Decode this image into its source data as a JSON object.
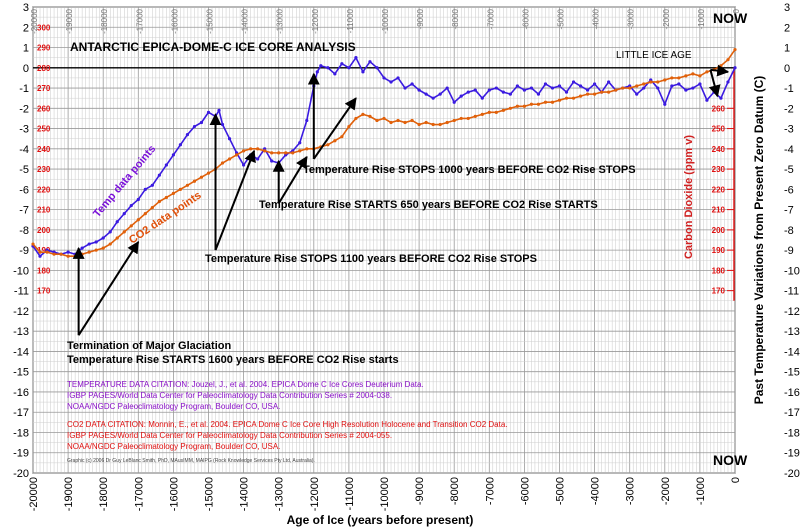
{
  "chart_data": {
    "type": "line",
    "title": "ANTARCTIC  EPICA-DOME-C  ICE  CORE  ANALYSIS",
    "xlabel": "Age of Ice (years before present)",
    "ylabel_right": "Past  Temperature  Variations  from  Present  Zero  Datum (C)",
    "ylabel_co2": "Carbon Dioxide (ppm v)",
    "xlim": [
      -20000,
      0
    ],
    "ylim": [
      -20,
      3
    ],
    "co2_axis_range": [
      170,
      300
    ],
    "x_ticks": [
      "-20000",
      "-19000",
      "-18000",
      "-17000",
      "-16000",
      "-15000",
      "-14000",
      "-13000",
      "-12000",
      "-11000",
      "-10000",
      "-9000",
      "-8000",
      "-7000",
      "-6000",
      "-5000",
      "-4000",
      "-3000",
      "-2000",
      "-1000",
      "0"
    ],
    "y_ticks": [
      "3",
      "2",
      "1",
      "0",
      "-1",
      "-2",
      "-3",
      "-4",
      "-5",
      "-6",
      "-7",
      "-8",
      "-9",
      "-10",
      "-11",
      "-12",
      "-13",
      "-14",
      "-15",
      "-16",
      "-17",
      "-18",
      "-19",
      "-20"
    ],
    "co2_ticks_left": [
      "300",
      "290",
      "280",
      "270",
      "260",
      "250",
      "240",
      "230",
      "220",
      "210",
      "200",
      "190",
      "180",
      "170"
    ],
    "co2_ticks_right": [
      "260",
      "250",
      "240",
      "230",
      "220",
      "210",
      "200",
      "190",
      "180",
      "170"
    ],
    "grid": true,
    "series": [
      {
        "name": "Temp data points",
        "color": "#3a1ae0",
        "x": [
          -20000,
          -19800,
          -19600,
          -19400,
          -19200,
          -19000,
          -18800,
          -18600,
          -18400,
          -18200,
          -18000,
          -17800,
          -17600,
          -17400,
          -17200,
          -17000,
          -16800,
          -16600,
          -16400,
          -16200,
          -16000,
          -15800,
          -15600,
          -15400,
          -15200,
          -15000,
          -14800,
          -14700,
          -14600,
          -14400,
          -14200,
          -14000,
          -13800,
          -13600,
          -13400,
          -13200,
          -13000,
          -12800,
          -12600,
          -12400,
          -12200,
          -12000,
          -11900,
          -11800,
          -11600,
          -11400,
          -11200,
          -11000,
          -10800,
          -10600,
          -10400,
          -10200,
          -10000,
          -9800,
          -9600,
          -9400,
          -9200,
          -9000,
          -8800,
          -8600,
          -8400,
          -8200,
          -8000,
          -7800,
          -7600,
          -7400,
          -7200,
          -7000,
          -6800,
          -6600,
          -6400,
          -6200,
          -6000,
          -5800,
          -5600,
          -5400,
          -5200,
          -5000,
          -4800,
          -4600,
          -4400,
          -4200,
          -4000,
          -3800,
          -3600,
          -3400,
          -3200,
          -3000,
          -2800,
          -2600,
          -2400,
          -2200,
          -2000,
          -1800,
          -1600,
          -1400,
          -1200,
          -1000,
          -800,
          -600,
          -400,
          -200,
          0
        ],
        "y": [
          -8.8,
          -9.3,
          -9.0,
          -9.1,
          -9.2,
          -9.1,
          -9.2,
          -8.9,
          -8.7,
          -8.6,
          -8.4,
          -8.1,
          -7.6,
          -7.2,
          -6.8,
          -6.5,
          -6.0,
          -5.8,
          -5.3,
          -4.8,
          -4.3,
          -3.8,
          -3.3,
          -2.9,
          -2.7,
          -2.2,
          -2.4,
          -2.1,
          -2.8,
          -3.5,
          -4.2,
          -4.8,
          -4.3,
          -4.5,
          -4.0,
          -4.6,
          -4.7,
          -4.3,
          -4.1,
          -3.7,
          -2.6,
          -0.9,
          -0.2,
          0.1,
          0.0,
          -0.3,
          0.2,
          0.0,
          0.5,
          -0.2,
          0.3,
          0.0,
          -0.5,
          -0.7,
          -0.5,
          -1.0,
          -0.8,
          -1.1,
          -1.3,
          -1.5,
          -1.3,
          -1.0,
          -1.7,
          -1.4,
          -1.2,
          -1.1,
          -1.5,
          -1.1,
          -1.0,
          -1.2,
          -1.3,
          -0.9,
          -1.1,
          -1.0,
          -1.3,
          -0.8,
          -1.0,
          -0.9,
          -1.2,
          -0.7,
          -0.9,
          -1.1,
          -0.8,
          -1.2,
          -0.7,
          -1.1,
          -1.0,
          -0.9,
          -1.3,
          -1.0,
          -0.6,
          -1.0,
          -1.8,
          -0.9,
          -0.8,
          -1.1,
          -1.0,
          -0.8,
          -1.6,
          -1.2,
          -1.5,
          -0.7,
          0.0
        ]
      },
      {
        "name": "CO2 data points",
        "color": "#e0600a",
        "co2": true,
        "x": [
          -20000,
          -19800,
          -19600,
          -19400,
          -19200,
          -19000,
          -18800,
          -18600,
          -18400,
          -18200,
          -18000,
          -17800,
          -17600,
          -17400,
          -17200,
          -17000,
          -16800,
          -16600,
          -16400,
          -16200,
          -16000,
          -15800,
          -15600,
          -15400,
          -15200,
          -15000,
          -14800,
          -14600,
          -14400,
          -14200,
          -14000,
          -13800,
          -13600,
          -13400,
          -13200,
          -13000,
          -12800,
          -12600,
          -12400,
          -12200,
          -12000,
          -11800,
          -11600,
          -11400,
          -11200,
          -11000,
          -10800,
          -10600,
          -10400,
          -10200,
          -10000,
          -9800,
          -9600,
          -9400,
          -9200,
          -9000,
          -8800,
          -8600,
          -8400,
          -8200,
          -8000,
          -7800,
          -7600,
          -7400,
          -7200,
          -7000,
          -6800,
          -6600,
          -6400,
          -6200,
          -6000,
          -5800,
          -5600,
          -5400,
          -5200,
          -5000,
          -4800,
          -4600,
          -4400,
          -4200,
          -4000,
          -3800,
          -3600,
          -3400,
          -3200,
          -3000,
          -2800,
          -2600,
          -2400,
          -2200,
          -2000,
          -1800,
          -1600,
          -1400,
          -1200,
          -1000,
          -800,
          -600,
          -400,
          -200,
          0
        ],
        "y": [
          193,
          189,
          189,
          188,
          188,
          187,
          187,
          188,
          189,
          190,
          191,
          193,
          196,
          199,
          202,
          205,
          208,
          211,
          214,
          216,
          218,
          220,
          222,
          224,
          226,
          228,
          230,
          233,
          235,
          237,
          239,
          240,
          240,
          239,
          238,
          238,
          238,
          238,
          239,
          240,
          240,
          241,
          242,
          244,
          246,
          251,
          255,
          257,
          256,
          254,
          255,
          253,
          254,
          253,
          254,
          252,
          253,
          252,
          252,
          253,
          254,
          255,
          255,
          256,
          257,
          258,
          258,
          259,
          260,
          261,
          261,
          262,
          262,
          263,
          263,
          264,
          265,
          265,
          266,
          267,
          267,
          268,
          268,
          269,
          270,
          270,
          271,
          272,
          273,
          273,
          274,
          275,
          275,
          276,
          277,
          276,
          278,
          279,
          281,
          284,
          289
        ]
      }
    ],
    "annotations": [
      "Temperature Rise STOPS 1000 years  BEFORE CO2 Rise STOPS",
      "Temperature Rise STARTS 650 years  BEFORE CO2 Rise STARTS",
      "Temperature Rise STOPS 1100 years  BEFORE CO2 Rise STOPS",
      "Termination of Major Glaciation",
      "Temperature Rise STARTS 1600 years  BEFORE CO2 Rise starts",
      "LITTLE ICE AGE",
      "NOW",
      "NOW"
    ],
    "citations": {
      "temp": [
        "TEMPERATURE DATA CITATION: Jouzel, J., et al. 2004.  EPICA Dome C Ice Cores Deuterium Data.",
        "IGBP PAGES/World Data Center for Paleoclimatology Data Contribution Series # 2004-038.",
        "NOAA/NGDC Paleoclimatology Program, Boulder CO, USA."
      ],
      "co2": [
        "CO2 DATA CITATION: Monnin, E., et al. 2004.  EPICA Dome C Ice Core High Resolution Holocene and Transition CO2 Data.",
        "IGBP PAGES/World Data Center for Paleoclimatology Data Contribution Series # 2004-055.",
        "NOAA/NGDC Paleoclimatology Program, Boulder CO, USA."
      ],
      "graphic": "Graphic (c) 2006 Dr Guy LeBlanc Smith, PhD, MAusIMM, MAIPG (Rock Knowledge Services Pty Ltd, Australia)."
    }
  }
}
